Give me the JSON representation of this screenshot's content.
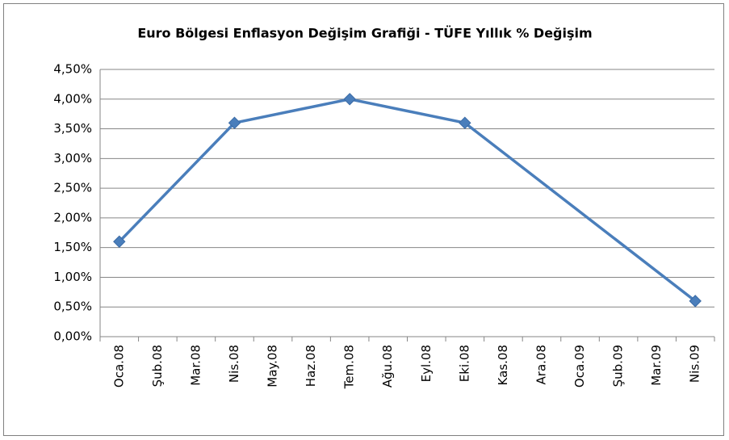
{
  "chart_data": {
    "type": "line",
    "title": "Euro Bölgesi Enflasyon Değişim Grafiği - TÜFE Yıllık  % Değişim",
    "categories": [
      "Oca.08",
      "Şub.08",
      "Mar.08",
      "Nis.08",
      "May.08",
      "Haz.08",
      "Tem.08",
      "Ağu.08",
      "Eyl.08",
      "Eki.08",
      "Kas.08",
      "Ara.08",
      "Oca.09",
      "Şub.09",
      "Mar.09",
      "Nis.09"
    ],
    "series": [
      {
        "name": "TÜFE Yıllık % Değişim",
        "color": "#4a7ebb",
        "values": [
          1.6,
          null,
          null,
          3.6,
          null,
          null,
          4.0,
          null,
          null,
          3.6,
          null,
          null,
          null,
          null,
          null,
          0.6
        ]
      }
    ],
    "connect_gaps": true,
    "ylim": [
      0,
      4.5
    ],
    "yticks": [
      {
        "value": 0,
        "label": "0,00%"
      },
      {
        "value": 0.5,
        "label": "0,50%"
      },
      {
        "value": 1,
        "label": "1,00%"
      },
      {
        "value": 1.5,
        "label": "1,50%"
      },
      {
        "value": 2,
        "label": "2,00%"
      },
      {
        "value": 2.5,
        "label": "2,50%"
      },
      {
        "value": 3,
        "label": "3,00%"
      },
      {
        "value": 3.5,
        "label": "3,50%"
      },
      {
        "value": 4,
        "label": "4,00%"
      },
      {
        "value": 4.5,
        "label": "4,50%"
      }
    ],
    "grid": true
  }
}
